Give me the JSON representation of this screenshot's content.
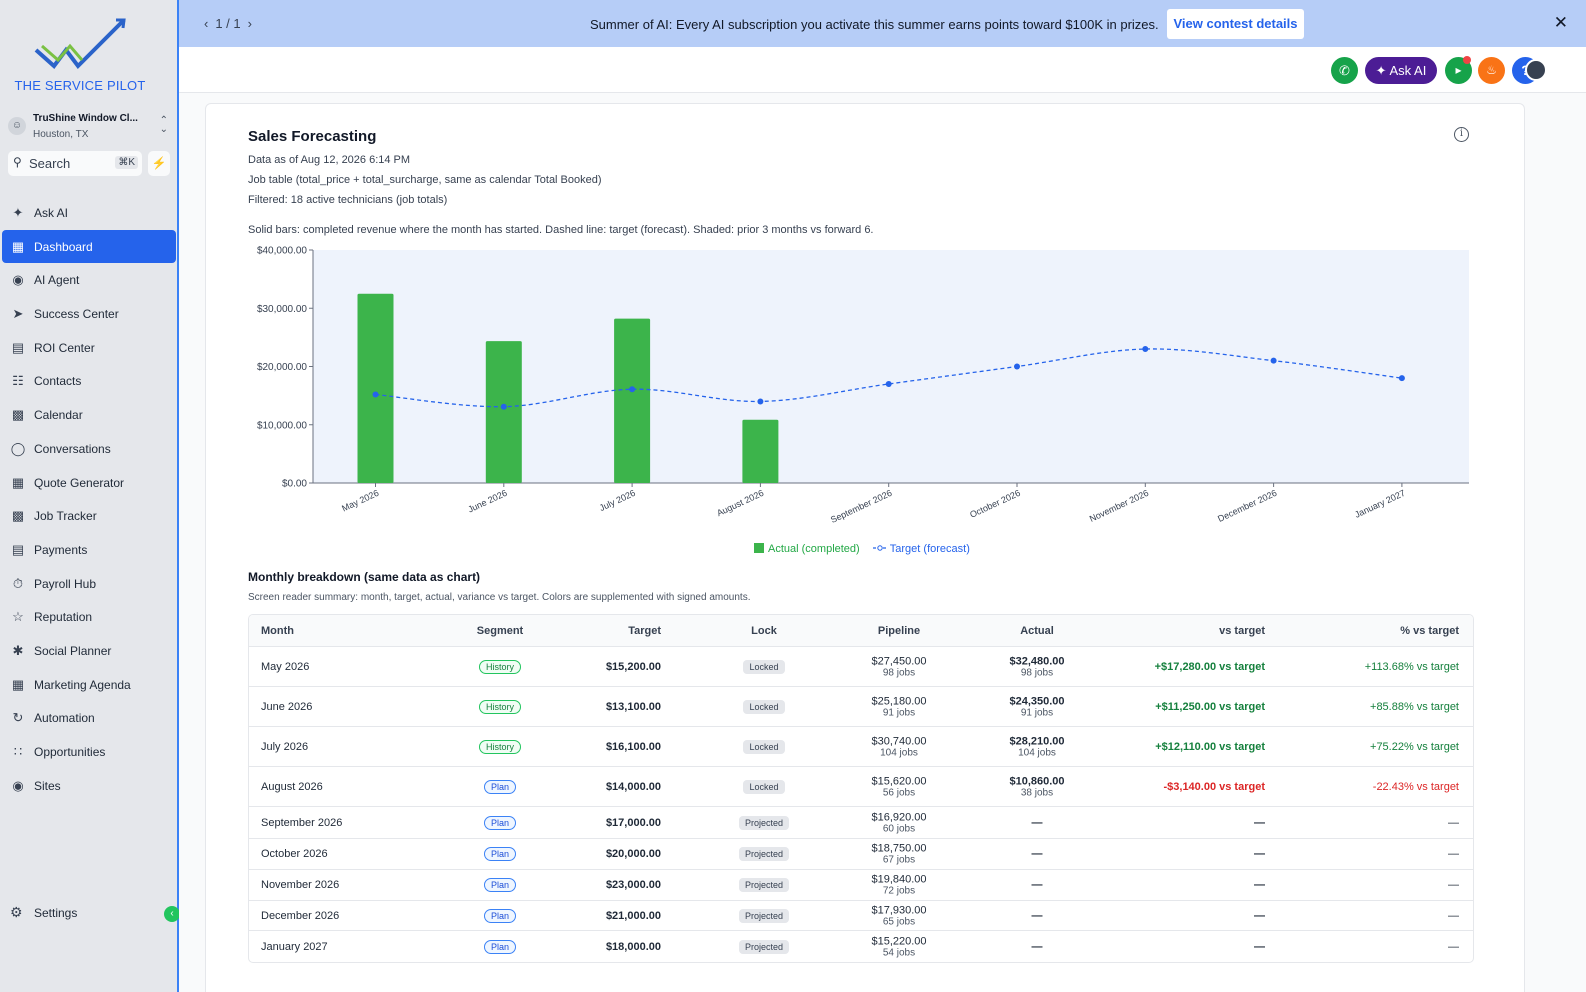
{
  "sidebar": {
    "logo_text": "THE SERVICE PILOT",
    "account_name": "TruShine Window Cl...",
    "account_location": "Houston, TX",
    "search_placeholder": "Search",
    "search_shortcut": "⌘K",
    "items": [
      {
        "label": "Ask AI",
        "icon": "sparkle-icon"
      },
      {
        "label": "Dashboard",
        "icon": "grid-icon",
        "active": true
      },
      {
        "label": "AI Agent",
        "icon": "brain-icon"
      },
      {
        "label": "Success Center",
        "icon": "rocket-icon"
      },
      {
        "label": "ROI Center",
        "icon": "chart-icon"
      },
      {
        "label": "Contacts",
        "icon": "contacts-icon"
      },
      {
        "label": "Calendar",
        "icon": "calendar-icon"
      },
      {
        "label": "Conversations",
        "icon": "chat-icon"
      },
      {
        "label": "Quote Generator",
        "icon": "calculator-icon"
      },
      {
        "label": "Job Tracker",
        "icon": "truck-icon"
      },
      {
        "label": "Payments",
        "icon": "receipt-icon"
      },
      {
        "label": "Payroll Hub",
        "icon": "stopwatch-icon"
      },
      {
        "label": "Reputation",
        "icon": "star-icon"
      },
      {
        "label": "Social Planner",
        "icon": "share-icon"
      },
      {
        "label": "Marketing Agenda",
        "icon": "calendar-grid-icon"
      },
      {
        "label": "Automation",
        "icon": "automation-icon"
      },
      {
        "label": "Opportunities",
        "icon": "network-icon"
      },
      {
        "label": "Sites",
        "icon": "globe-icon"
      }
    ],
    "settings_label": "Settings"
  },
  "banner": {
    "pager": "1 / 1",
    "message": "Summer of AI: Every AI subscription you activate this summer earns points toward $100K in prizes.",
    "cta": "View contest details"
  },
  "topbar": {
    "ask_ai": "Ask AI",
    "help": "?"
  },
  "card": {
    "title": "Sales Forecasting",
    "data_as_of": "Data as of Aug 12, 2026 6:14 PM",
    "source": "Job table (total_price + total_surcharge, same as calendar Total Booked)",
    "filter": "Filtered: 18 active technicians (job totals)",
    "description": "Solid bars: completed revenue where the month has started. Dashed line: target (forecast). Shaded: prior 3 months vs forward 6."
  },
  "chart_data": {
    "type": "bar",
    "categories": [
      "May 2026",
      "June 2026",
      "July 2026",
      "August 2026",
      "September 2026",
      "October 2026",
      "November 2026",
      "December 2026",
      "January 2027"
    ],
    "series": [
      {
        "name": "Actual (completed)",
        "type": "bar",
        "color": "#3cb44b",
        "values": [
          32480,
          24350,
          28210,
          10860,
          null,
          null,
          null,
          null,
          null
        ]
      },
      {
        "name": "Target (forecast)",
        "type": "line",
        "style": "dashed",
        "color": "#2563eb",
        "values": [
          15200,
          13100,
          16100,
          14000,
          17000,
          20000,
          23000,
          21000,
          18000
        ]
      }
    ],
    "y_ticks": [
      "$0.00",
      "$10,000.00",
      "$20,000.00",
      "$30,000.00",
      "$40,000.00"
    ],
    "ylim": [
      0,
      40000
    ],
    "legend": "bottom-center",
    "grid": false
  },
  "breakdown": {
    "title": "Monthly breakdown (same data as chart)",
    "subtitle": "Screen reader summary: month, target, actual, variance vs target. Colors are supplemented with signed amounts.",
    "headers": {
      "month": "Month",
      "segment": "Segment",
      "target": "Target",
      "lock": "Lock",
      "pipeline": "Pipeline",
      "actual": "Actual",
      "vs": "vs target",
      "pct": "% vs target"
    },
    "rows": [
      {
        "month": "May 2026",
        "segment": "History",
        "target": "$15,200.00",
        "lock": "Locked",
        "pipeline": "$27,450.00",
        "pipeline_jobs": "98 jobs",
        "actual": "$32,480.00",
        "actual_jobs": "98 jobs",
        "vs": "+$17,280.00 vs target",
        "pct": "+113.68% vs target",
        "sign": "pos"
      },
      {
        "month": "June 2026",
        "segment": "History",
        "target": "$13,100.00",
        "lock": "Locked",
        "pipeline": "$25,180.00",
        "pipeline_jobs": "91 jobs",
        "actual": "$24,350.00",
        "actual_jobs": "91 jobs",
        "vs": "+$11,250.00 vs target",
        "pct": "+85.88% vs target",
        "sign": "pos"
      },
      {
        "month": "July 2026",
        "segment": "History",
        "target": "$16,100.00",
        "lock": "Locked",
        "pipeline": "$30,740.00",
        "pipeline_jobs": "104 jobs",
        "actual": "$28,210.00",
        "actual_jobs": "104 jobs",
        "vs": "+$12,110.00 vs target",
        "pct": "+75.22% vs target",
        "sign": "pos"
      },
      {
        "month": "August 2026",
        "segment": "Plan",
        "target": "$14,000.00",
        "lock": "Locked",
        "pipeline": "$15,620.00",
        "pipeline_jobs": "56 jobs",
        "actual": "$10,860.00",
        "actual_jobs": "38 jobs",
        "vs": "-$3,140.00 vs target",
        "pct": "-22.43% vs target",
        "sign": "neg"
      },
      {
        "month": "September 2026",
        "segment": "Plan",
        "target": "$17,000.00",
        "lock": "Projected",
        "pipeline": "$16,920.00",
        "pipeline_jobs": "60 jobs",
        "actual": "—",
        "actual_jobs": "",
        "vs": "—",
        "pct": "—",
        "sign": "none"
      },
      {
        "month": "October 2026",
        "segment": "Plan",
        "target": "$20,000.00",
        "lock": "Projected",
        "pipeline": "$18,750.00",
        "pipeline_jobs": "67 jobs",
        "actual": "—",
        "actual_jobs": "",
        "vs": "—",
        "pct": "—",
        "sign": "none"
      },
      {
        "month": "November 2026",
        "segment": "Plan",
        "target": "$23,000.00",
        "lock": "Projected",
        "pipeline": "$19,840.00",
        "pipeline_jobs": "72 jobs",
        "actual": "—",
        "actual_jobs": "",
        "vs": "—",
        "pct": "—",
        "sign": "none"
      },
      {
        "month": "December 2026",
        "segment": "Plan",
        "target": "$21,000.00",
        "lock": "Projected",
        "pipeline": "$17,930.00",
        "pipeline_jobs": "65 jobs",
        "actual": "—",
        "actual_jobs": "",
        "vs": "—",
        "pct": "—",
        "sign": "none"
      },
      {
        "month": "January 2027",
        "segment": "Plan",
        "target": "$18,000.00",
        "lock": "Projected",
        "pipeline": "$15,220.00",
        "pipeline_jobs": "54 jobs",
        "actual": "—",
        "actual_jobs": "",
        "vs": "—",
        "pct": "—",
        "sign": "none"
      }
    ]
  }
}
